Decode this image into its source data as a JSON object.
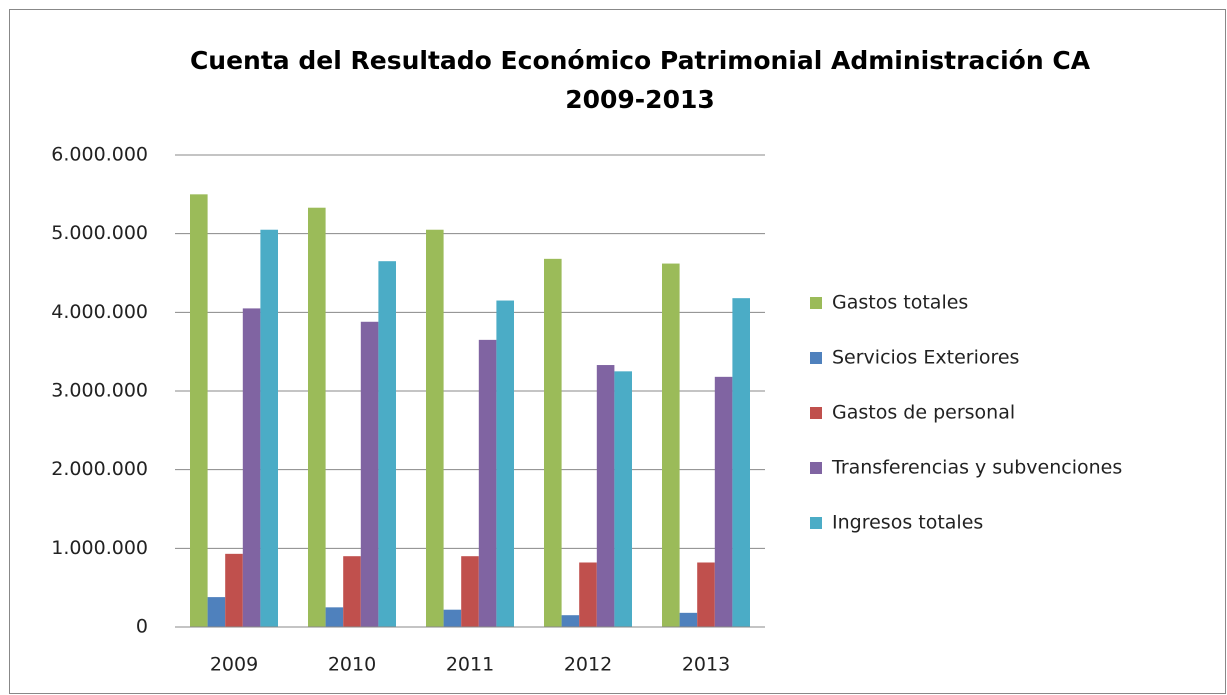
{
  "chart_data": {
    "type": "bar",
    "title": [
      "Cuenta del Resultado Económico Patrimonial Administración CA",
      "2009-2013"
    ],
    "categories": [
      "2009",
      "2010",
      "2011",
      "2012",
      "2013"
    ],
    "series": [
      {
        "name": "Gastos totales",
        "color": "#9bbb59",
        "values": [
          5500000,
          5330000,
          5050000,
          4680000,
          4620000
        ]
      },
      {
        "name": "Servicios Exteriores",
        "color": "#4f81bd",
        "values": [
          380000,
          250000,
          220000,
          150000,
          180000
        ]
      },
      {
        "name": "Gastos de personal",
        "color": "#c0504d",
        "values": [
          930000,
          900000,
          900000,
          820000,
          820000
        ]
      },
      {
        "name": "Transferencias y subvenciones",
        "color": "#8064a2",
        "values": [
          4050000,
          3880000,
          3650000,
          3330000,
          3180000
        ]
      },
      {
        "name": "Ingresos totales",
        "color": "#4bacc6",
        "values": [
          5050000,
          4650000,
          4150000,
          3250000,
          4180000
        ]
      }
    ],
    "ylim": [
      0,
      6000000
    ],
    "yticks": [
      0,
      {
        "value": 1000000,
        "label": "1.000.000"
      },
      {
        "value": 2000000,
        "label": "2.000.000"
      },
      {
        "value": 3000000,
        "label": "3.000.000"
      },
      {
        "value": 4000000,
        "label": "4.000.000"
      },
      {
        "value": 5000000,
        "label": "5.000.000"
      },
      {
        "value": 6000000,
        "label": "6.000.000"
      }
    ],
    "grid": true,
    "legend": "right"
  }
}
